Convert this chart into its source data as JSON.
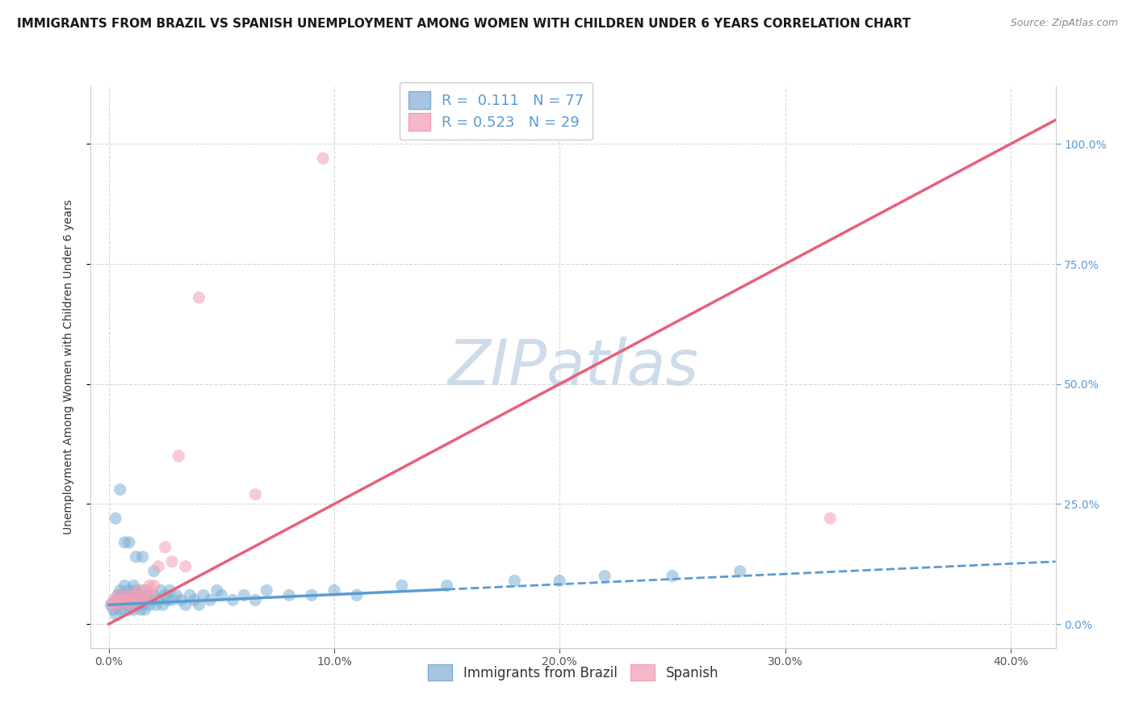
{
  "title": "IMMIGRANTS FROM BRAZIL VS SPANISH UNEMPLOYMENT AMONG WOMEN WITH CHILDREN UNDER 6 YEARS CORRELATION CHART",
  "source": "Source: ZipAtlas.com",
  "xlabel_tick_vals": [
    0.0,
    0.1,
    0.2,
    0.3,
    0.4
  ],
  "xlabel_ticks": [
    "0.0%",
    "10.0%",
    "20.0%",
    "30.0%",
    "40.0%"
  ],
  "ylabel_tick_vals": [
    0.0,
    0.25,
    0.5,
    0.75,
    1.0
  ],
  "ylabel_ticks": [
    "0.0%",
    "25.0%",
    "50.0%",
    "75.0%",
    "100.0%"
  ],
  "ylabel_label": "Unemployment Among Women with Children Under 6 years",
  "xlim": [
    -0.008,
    0.42
  ],
  "ylim": [
    -0.05,
    1.12
  ],
  "legend_series": [
    {
      "label": "Immigrants from Brazil",
      "R": "0.111",
      "N": "77",
      "color": "#a8c4e0"
    },
    {
      "label": "Spanish",
      "R": "0.523",
      "N": "29",
      "color": "#f4b8c8"
    }
  ],
  "blue_scatter_x": [
    0.001,
    0.002,
    0.003,
    0.003,
    0.004,
    0.004,
    0.005,
    0.005,
    0.005,
    0.006,
    0.006,
    0.007,
    0.007,
    0.007,
    0.008,
    0.008,
    0.009,
    0.009,
    0.009,
    0.01,
    0.01,
    0.011,
    0.011,
    0.012,
    0.012,
    0.013,
    0.013,
    0.014,
    0.014,
    0.015,
    0.015,
    0.016,
    0.016,
    0.017,
    0.018,
    0.019,
    0.02,
    0.021,
    0.022,
    0.023,
    0.024,
    0.025,
    0.026,
    0.027,
    0.028,
    0.03,
    0.032,
    0.034,
    0.036,
    0.038,
    0.04,
    0.042,
    0.045,
    0.048,
    0.05,
    0.055,
    0.06,
    0.065,
    0.07,
    0.08,
    0.09,
    0.1,
    0.11,
    0.13,
    0.15,
    0.18,
    0.2,
    0.22,
    0.25,
    0.28,
    0.003,
    0.005,
    0.007,
    0.009,
    0.012,
    0.015,
    0.02
  ],
  "blue_scatter_y": [
    0.04,
    0.03,
    0.05,
    0.02,
    0.04,
    0.06,
    0.03,
    0.05,
    0.07,
    0.04,
    0.06,
    0.03,
    0.05,
    0.08,
    0.04,
    0.06,
    0.03,
    0.05,
    0.07,
    0.04,
    0.06,
    0.03,
    0.08,
    0.05,
    0.07,
    0.04,
    0.06,
    0.03,
    0.05,
    0.04,
    0.07,
    0.05,
    0.03,
    0.06,
    0.04,
    0.05,
    0.06,
    0.04,
    0.05,
    0.07,
    0.04,
    0.06,
    0.05,
    0.07,
    0.05,
    0.06,
    0.05,
    0.04,
    0.06,
    0.05,
    0.04,
    0.06,
    0.05,
    0.07,
    0.06,
    0.05,
    0.06,
    0.05,
    0.07,
    0.06,
    0.06,
    0.07,
    0.06,
    0.08,
    0.08,
    0.09,
    0.09,
    0.1,
    0.1,
    0.11,
    0.22,
    0.28,
    0.17,
    0.17,
    0.14,
    0.14,
    0.11
  ],
  "pink_scatter_x": [
    0.001,
    0.002,
    0.003,
    0.004,
    0.005,
    0.006,
    0.007,
    0.008,
    0.009,
    0.01,
    0.011,
    0.012,
    0.013,
    0.014,
    0.015,
    0.016,
    0.017,
    0.018,
    0.019,
    0.02,
    0.022,
    0.025,
    0.028,
    0.031,
    0.034,
    0.04,
    0.065,
    0.095,
    0.32
  ],
  "pink_scatter_y": [
    0.04,
    0.05,
    0.04,
    0.06,
    0.05,
    0.04,
    0.05,
    0.06,
    0.05,
    0.04,
    0.06,
    0.05,
    0.07,
    0.05,
    0.06,
    0.05,
    0.07,
    0.08,
    0.06,
    0.08,
    0.12,
    0.16,
    0.13,
    0.35,
    0.12,
    0.68,
    0.27,
    0.97,
    0.22
  ],
  "blue_line_x0": 0.0,
  "blue_line_x1": 0.42,
  "blue_line_y0": 0.04,
  "blue_line_y1": 0.13,
  "blue_line_solid_x1": 0.15,
  "pink_line_x0": 0.0,
  "pink_line_x1": 0.42,
  "pink_line_y0": 0.0,
  "pink_line_y1": 1.05,
  "grid_color": "#d8d8d8",
  "grid_linestyle": "--",
  "scatter_alpha": 0.55,
  "scatter_size": 120,
  "blue_color": "#7bafd4",
  "pink_color": "#f4a0b5",
  "blue_line_color": "#5b9bd5",
  "pink_line_color": "#e8607a",
  "watermark_color": "#c8d8e8",
  "title_fontsize": 11,
  "axis_label_fontsize": 10,
  "tick_fontsize": 10,
  "legend_fontsize": 13,
  "right_tick_color": "#5b9bd5"
}
